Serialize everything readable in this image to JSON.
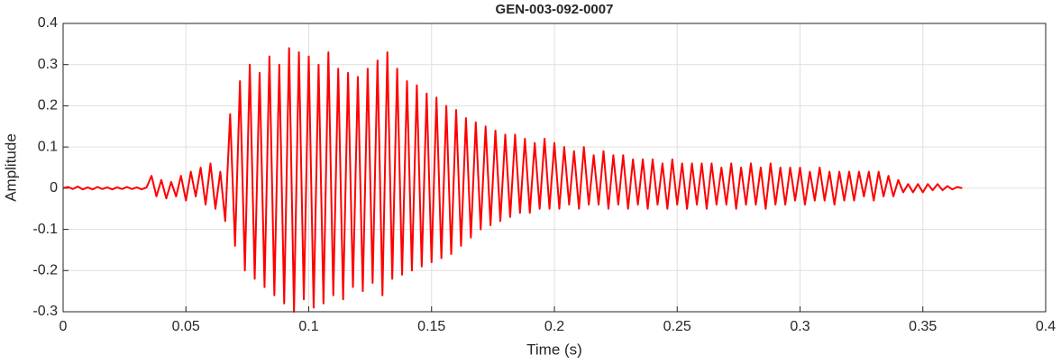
{
  "chart_data": {
    "type": "line",
    "title": "GEN-003-092-0007",
    "xlabel": "Time (s)",
    "ylabel": "Amplitude",
    "xlim": [
      0,
      0.4
    ],
    "xticks": [
      0,
      0.05,
      0.1,
      0.15,
      0.2,
      0.25,
      0.3,
      0.35,
      0.4
    ],
    "ylim": [
      -0.3,
      0.4
    ],
    "yticks": [
      -0.3,
      -0.2,
      -0.1,
      0,
      0.1,
      0.2,
      0.3,
      0.4
    ],
    "grid": true,
    "x": [
      0,
      0.002,
      0.004,
      0.006,
      0.008,
      0.01,
      0.012,
      0.014,
      0.016,
      0.018,
      0.02,
      0.022,
      0.024,
      0.026,
      0.028,
      0.03,
      0.032,
      0.034,
      0.036,
      0.038,
      0.04,
      0.042,
      0.044,
      0.046,
      0.048,
      0.05,
      0.052,
      0.054,
      0.056,
      0.058,
      0.06,
      0.062,
      0.064,
      0.066,
      0.068,
      0.07,
      0.072,
      0.074,
      0.076,
      0.078,
      0.08,
      0.082,
      0.084,
      0.086,
      0.088,
      0.09,
      0.092,
      0.094,
      0.096,
      0.098,
      0.1,
      0.102,
      0.104,
      0.106,
      0.108,
      0.11,
      0.112,
      0.114,
      0.116,
      0.118,
      0.12,
      0.122,
      0.124,
      0.126,
      0.128,
      0.13,
      0.132,
      0.134,
      0.136,
      0.138,
      0.14,
      0.142,
      0.144,
      0.146,
      0.148,
      0.15,
      0.152,
      0.154,
      0.156,
      0.158,
      0.16,
      0.162,
      0.164,
      0.166,
      0.168,
      0.17,
      0.172,
      0.174,
      0.176,
      0.178,
      0.18,
      0.182,
      0.184,
      0.186,
      0.188,
      0.19,
      0.192,
      0.194,
      0.196,
      0.198,
      0.2,
      0.202,
      0.204,
      0.206,
      0.208,
      0.21,
      0.212,
      0.214,
      0.216,
      0.218,
      0.22,
      0.222,
      0.224,
      0.226,
      0.228,
      0.23,
      0.232,
      0.234,
      0.236,
      0.238,
      0.24,
      0.242,
      0.244,
      0.246,
      0.248,
      0.25,
      0.252,
      0.254,
      0.256,
      0.258,
      0.26,
      0.262,
      0.264,
      0.266,
      0.268,
      0.27,
      0.272,
      0.274,
      0.276,
      0.278,
      0.28,
      0.282,
      0.284,
      0.286,
      0.288,
      0.29,
      0.292,
      0.294,
      0.296,
      0.298,
      0.3,
      0.302,
      0.304,
      0.306,
      0.308,
      0.31,
      0.312,
      0.314,
      0.316,
      0.318,
      0.32,
      0.322,
      0.324,
      0.326,
      0.328,
      0.33,
      0.332,
      0.334,
      0.336,
      0.338,
      0.34,
      0.342,
      0.344,
      0.346,
      0.348,
      0.35,
      0.352,
      0.354,
      0.356,
      0.358,
      0.36,
      0.362,
      0.364,
      0.366
    ],
    "series": [
      {
        "color": "#ff0000",
        "values": [
          0,
          0.003,
          -0.002,
          0.004,
          -0.003,
          0.002,
          -0.003,
          0.003,
          -0.002,
          0.002,
          -0.003,
          0.002,
          -0.002,
          0.003,
          -0.002,
          0.002,
          -0.003,
          0.002,
          0.03,
          -0.02,
          0.02,
          -0.025,
          0.015,
          -0.02,
          0.03,
          -0.03,
          0.04,
          -0.02,
          0.05,
          -0.04,
          0.06,
          -0.05,
          0.04,
          -0.08,
          0.18,
          -0.14,
          0.26,
          -0.2,
          0.3,
          -0.22,
          0.28,
          -0.24,
          0.32,
          -0.26,
          0.3,
          -0.28,
          0.34,
          -0.3,
          0.33,
          -0.27,
          0.32,
          -0.29,
          0.3,
          -0.28,
          0.33,
          -0.26,
          0.29,
          -0.27,
          0.28,
          -0.24,
          0.27,
          -0.25,
          0.29,
          -0.23,
          0.31,
          -0.26,
          0.33,
          -0.22,
          0.29,
          -0.21,
          0.26,
          -0.2,
          0.25,
          -0.19,
          0.23,
          -0.18,
          0.22,
          -0.17,
          0.2,
          -0.16,
          0.19,
          -0.14,
          0.17,
          -0.12,
          0.16,
          -0.1,
          0.15,
          -0.09,
          0.14,
          -0.08,
          0.13,
          -0.07,
          0.13,
          -0.06,
          0.12,
          -0.06,
          0.11,
          -0.05,
          0.12,
          -0.05,
          0.11,
          -0.05,
          0.1,
          -0.04,
          0.09,
          -0.05,
          0.1,
          -0.04,
          0.08,
          -0.04,
          0.09,
          -0.05,
          0.08,
          -0.04,
          0.08,
          -0.05,
          0.07,
          -0.04,
          0.07,
          -0.05,
          0.07,
          -0.04,
          0.06,
          -0.05,
          0.07,
          -0.04,
          0.06,
          -0.05,
          0.06,
          -0.04,
          0.06,
          -0.05,
          0.06,
          -0.04,
          0.05,
          -0.04,
          0.06,
          -0.05,
          0.05,
          -0.04,
          0.06,
          -0.04,
          0.05,
          -0.05,
          0.06,
          -0.04,
          0.05,
          -0.04,
          0.05,
          -0.03,
          0.05,
          -0.04,
          0.04,
          -0.03,
          0.05,
          -0.03,
          0.04,
          -0.04,
          0.04,
          -0.03,
          0.04,
          -0.03,
          0.04,
          -0.02,
          0.04,
          -0.03,
          0.04,
          -0.02,
          0.03,
          -0.02,
          0.02,
          -0.01,
          0.01,
          -0.01,
          0.01,
          -0.01,
          0.01,
          -0.005,
          0.01,
          -0.005,
          0.005,
          -0.003,
          0.003,
          0
        ]
      }
    ]
  }
}
